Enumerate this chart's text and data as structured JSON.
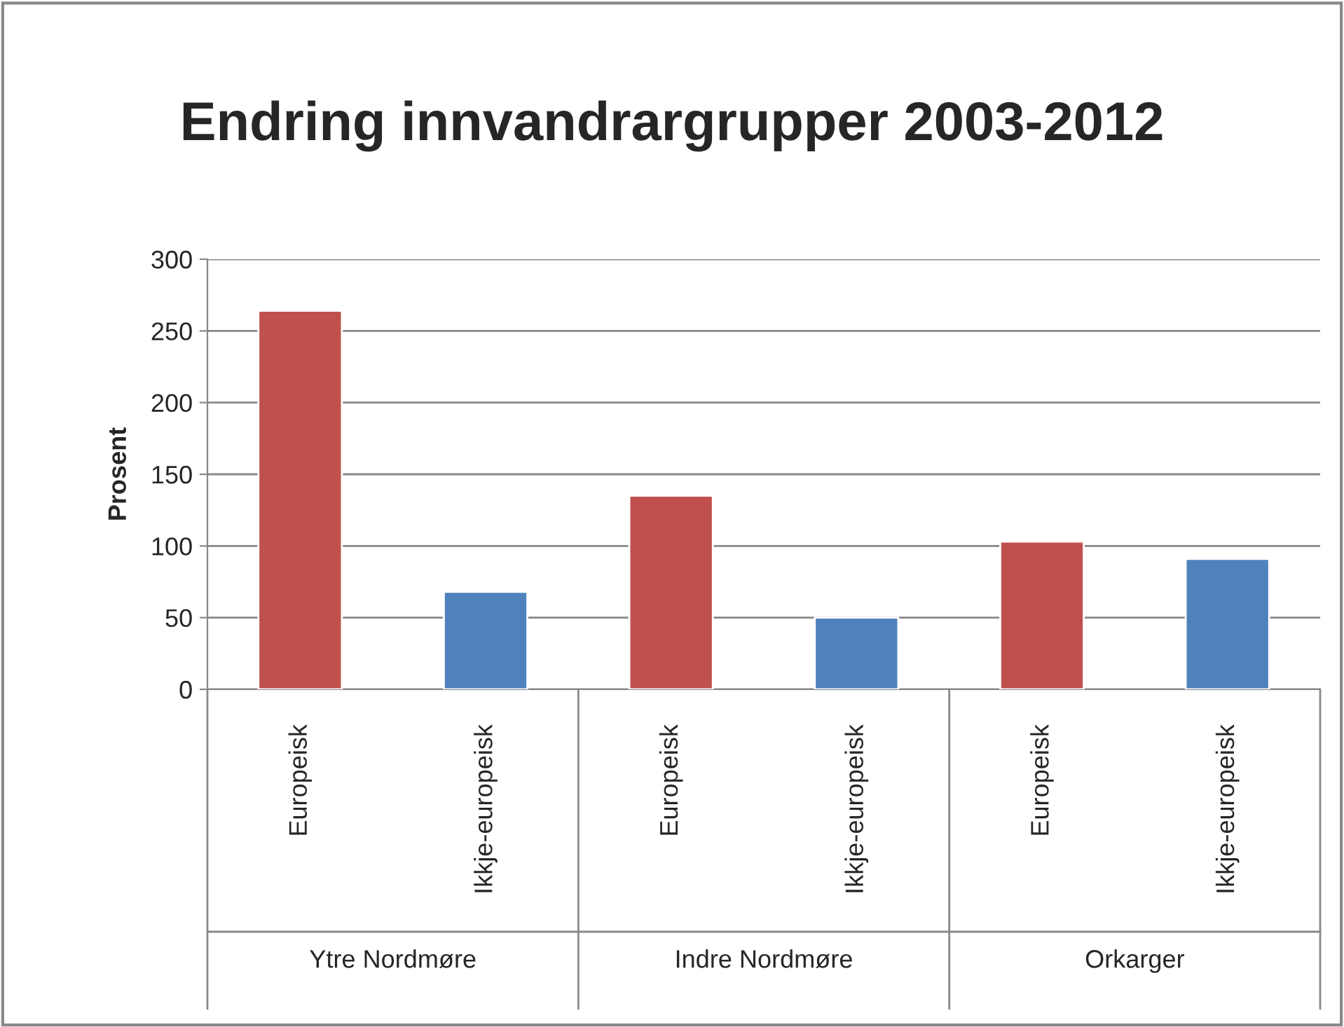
{
  "chart_data": {
    "type": "bar",
    "title": "Endring innvandrargrupper 2003-2012",
    "ylabel": "Prosent",
    "categories": [
      "Europeisk",
      "Ikkje-europeisk",
      "Europeisk",
      "Ikkje-europeisk",
      "Europeisk",
      "Ikkje-europeisk"
    ],
    "values": [
      264,
      68,
      135,
      50,
      103,
      91
    ],
    "colors": [
      "#c0504d",
      "#4f81bd",
      "#c0504d",
      "#4f81bd",
      "#c0504d",
      "#4f81bd"
    ],
    "annotations": [
      "Ytre Nordmøre",
      "Indre Nordmøre",
      "Orkarger"
    ],
    "ylim": [
      0,
      300
    ],
    "yticks": [
      0,
      50,
      100,
      150,
      200,
      250,
      300
    ],
    "grid": "y",
    "legend": false
  }
}
